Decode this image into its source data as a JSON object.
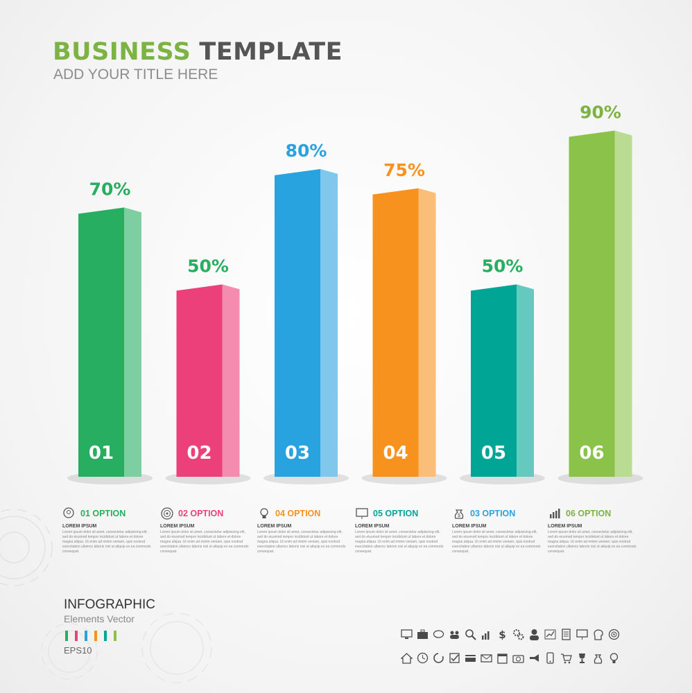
{
  "header": {
    "title_word1": "BUSINESS",
    "title_word2": "TEMPLATE",
    "subtitle": "ADD YOUR  TITLE HERE"
  },
  "chart_data": {
    "type": "bar",
    "categories": [
      "01",
      "02",
      "03",
      "04",
      "05",
      "06"
    ],
    "values": [
      70,
      50,
      80,
      75,
      50,
      90
    ],
    "data_labels": [
      "70%",
      "50%",
      "80%",
      "75%",
      "50%",
      "90%"
    ],
    "colors": [
      "#27ae60",
      "#ec407a",
      "#29a3e0",
      "#f7921e",
      "#00a596",
      "#8bc34a"
    ],
    "label_colors": [
      "#27ae60",
      "#27ae60",
      "#29a3e0",
      "#f7921e",
      "#27ae60",
      "#7cb342"
    ],
    "title": "",
    "xlabel": "",
    "ylabel": "",
    "grid": false
  },
  "options": [
    {
      "number": "01",
      "label": "OPTION",
      "color": "#27ae60",
      "icon": "head-gear-icon"
    },
    {
      "number": "02",
      "label": "OPTION",
      "color": "#ec407a",
      "icon": "target-icon"
    },
    {
      "number": "04",
      "label": "OPTION",
      "color": "#f7921e",
      "icon": "lightbulb-icon"
    },
    {
      "number": "05",
      "label": "OPTION",
      "color": "#00a596",
      "icon": "presentation-icon"
    },
    {
      "number": "03",
      "label": "OPTION",
      "color": "#29a3e0",
      "icon": "money-bag-icon"
    },
    {
      "number": "06",
      "label": "OPTION",
      "color": "#7cb342",
      "icon": "bar-chart-icon"
    }
  ],
  "option_heading": "LOREM IPSUM",
  "option_body": "Lorem ipsum dolor sit amet, consectetur adipisicing elit, sed do eiusmod tempor incididunt ut labore et dolore magna aliqua. Ut enim ad minim veniam, quis nostrud exercitation ullamco laboris nisi ut aliquip ex ea commodo consequat.",
  "infographic": {
    "title": "INFOGRAPHIC",
    "subtitle": "Elements  Vector",
    "format": "EPS10",
    "swatches": [
      "#27ae60",
      "#ec407a",
      "#29a3e0",
      "#f7921e",
      "#00a596",
      "#8bc34a"
    ]
  },
  "icons_row1": [
    "monitor-icon",
    "briefcase-icon",
    "chat-icon",
    "team-icon",
    "search-icon",
    "growth-icon",
    "dollar-icon",
    "gears-icon",
    "user-icon",
    "line-chart-icon",
    "document-icon",
    "presentation-icon",
    "head-icon",
    "target-icon"
  ],
  "icons_row2": [
    "home-icon",
    "clock-icon",
    "refresh-icon",
    "checkbox-icon",
    "credit-card-icon",
    "mail-icon",
    "calendar-icon",
    "camera-icon",
    "megaphone-icon",
    "phone-icon",
    "cart-icon",
    "trophy-icon",
    "money-bag-icon",
    "lightbulb-icon"
  ]
}
